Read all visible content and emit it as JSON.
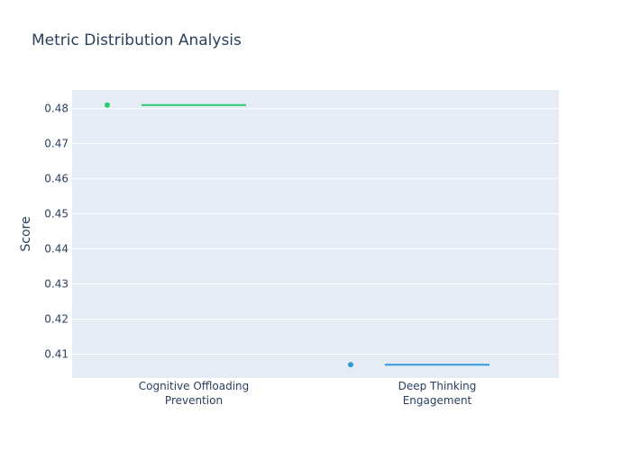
{
  "chart_data": {
    "type": "box",
    "title": "Metric Distribution Analysis",
    "xlabel": "",
    "ylabel": "Score",
    "categories": [
      "Cognitive Offloading\nPrevention",
      "Deep Thinking\nEngagement"
    ],
    "series": [
      {
        "category_index": 0,
        "values": [
          0.481
        ],
        "color": "#2ecc71"
      },
      {
        "category_index": 1,
        "values": [
          0.407
        ],
        "color": "#3498db"
      }
    ],
    "ylim": [
      0.4032,
      0.4853
    ],
    "yticks": [
      0.41,
      0.42,
      0.43,
      0.44,
      0.45,
      0.46,
      0.47,
      0.48
    ],
    "grid": true,
    "legend": "none",
    "plot_bg": "#e5ecf6",
    "grid_color": "#ffffff",
    "text_color": "#2a3f5f"
  }
}
